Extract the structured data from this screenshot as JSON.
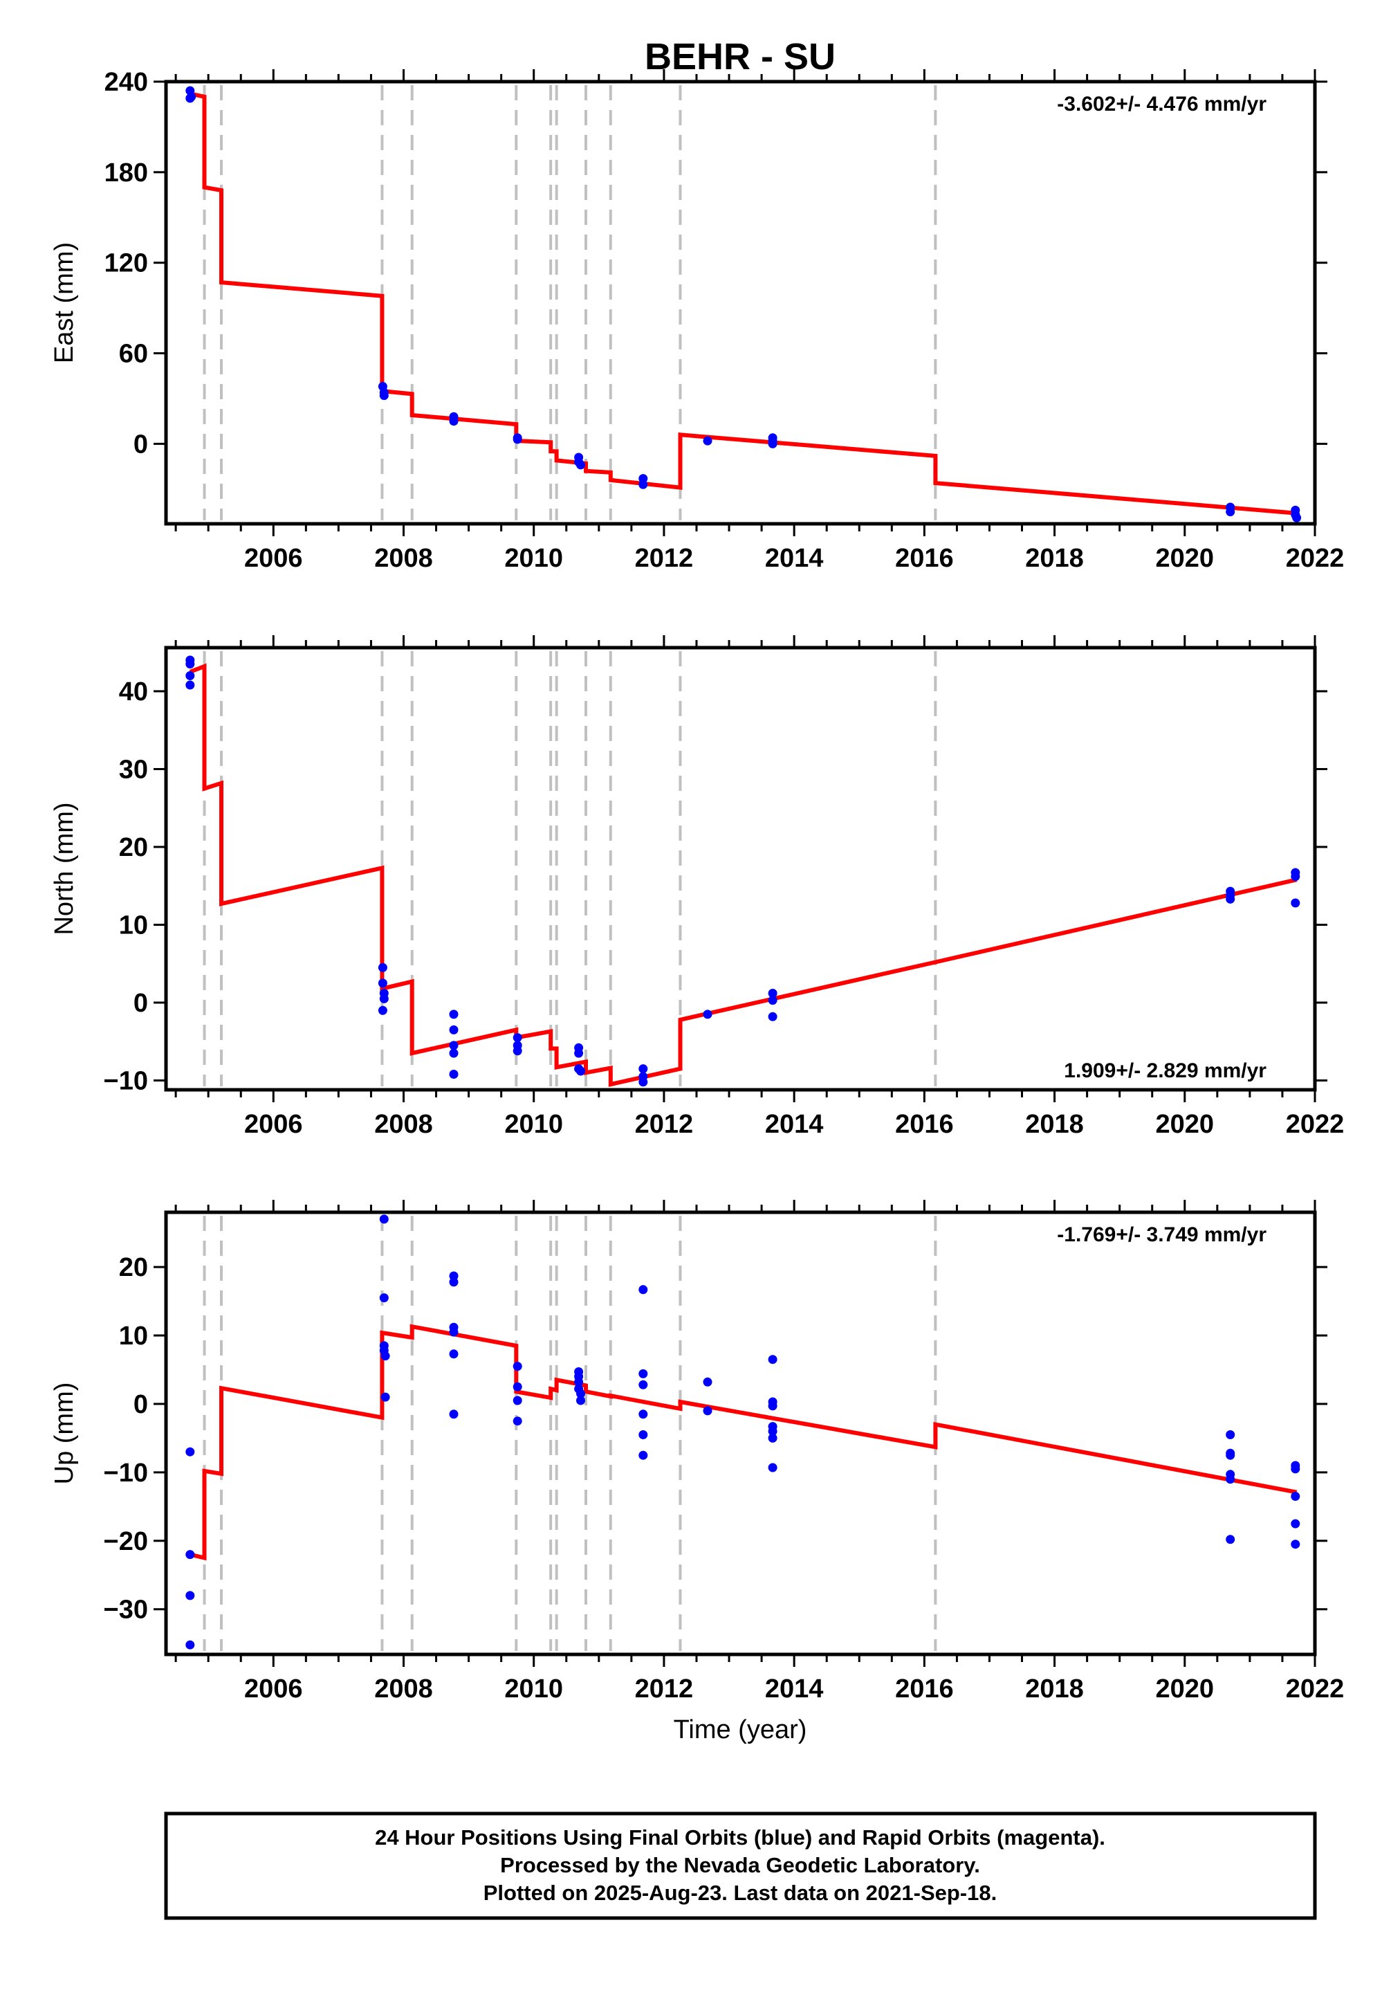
{
  "title": "BEHR - SU",
  "x_axis_label": "Time (year)",
  "footer": {
    "line1": "24 Hour Positions Using Final Orbits (blue) and Rapid Orbits (magenta).",
    "line2": "Processed by the Nevada Geodetic Laboratory.",
    "line3": "Plotted on 2025-Aug-23. Last data on 2021-Sep-18."
  },
  "colors": {
    "data": "#0000ff",
    "model": "#ff0000",
    "steps": "#c0c0c0",
    "frame": "#000000"
  },
  "chart_data": [
    {
      "type": "scatter",
      "ylabel": "East (mm)",
      "rate_text": "-3.602+/- 4.476 mm/yr",
      "rate_position": "top-right",
      "xlim": [
        2004.35,
        2022.0
      ],
      "ylim": [
        -53,
        240
      ],
      "xticks": [
        2006,
        2008,
        2010,
        2012,
        2014,
        2016,
        2018,
        2020,
        2022
      ],
      "yticks": [
        0,
        60,
        120,
        180,
        240
      ],
      "step_epochs": [
        2004.94,
        2005.2,
        2007.67,
        2008.13,
        2009.73,
        2010.26,
        2010.35,
        2010.8,
        2011.18,
        2012.25,
        2016.17
      ],
      "points": [
        [
          2004.72,
          234
        ],
        [
          2004.72,
          229
        ],
        [
          2004.74,
          230
        ],
        [
          2007.68,
          38
        ],
        [
          2007.7,
          34
        ],
        [
          2007.7,
          32
        ],
        [
          2008.77,
          18
        ],
        [
          2008.77,
          15
        ],
        [
          2009.75,
          4
        ],
        [
          2009.75,
          3
        ],
        [
          2010.69,
          -9
        ],
        [
          2010.69,
          -12
        ],
        [
          2010.72,
          -14
        ],
        [
          2011.68,
          -23
        ],
        [
          2011.68,
          -27
        ],
        [
          2012.67,
          2
        ],
        [
          2013.67,
          4
        ],
        [
          2013.67,
          2
        ],
        [
          2013.67,
          0
        ],
        [
          2020.7,
          -42
        ],
        [
          2020.7,
          -45
        ],
        [
          2021.7,
          -44
        ],
        [
          2021.7,
          -47
        ],
        [
          2021.72,
          -49
        ]
      ],
      "model": [
        [
          2004.72,
          232
        ],
        [
          2004.94,
          230
        ],
        [
          2004.94,
          170
        ],
        [
          2005.2,
          168
        ],
        [
          2005.2,
          107
        ],
        [
          2007.67,
          98
        ],
        [
          2007.67,
          35
        ],
        [
          2008.13,
          33
        ],
        [
          2008.13,
          19
        ],
        [
          2009.73,
          13
        ],
        [
          2009.73,
          2
        ],
        [
          2010.26,
          1
        ],
        [
          2010.26,
          -5
        ],
        [
          2010.35,
          -5
        ],
        [
          2010.35,
          -11
        ],
        [
          2010.8,
          -13
        ],
        [
          2010.8,
          -18
        ],
        [
          2011.18,
          -19
        ],
        [
          2011.18,
          -24
        ],
        [
          2012.25,
          -29
        ],
        [
          2012.25,
          6
        ],
        [
          2016.17,
          -8
        ],
        [
          2016.17,
          -26
        ],
        [
          2021.72,
          -46
        ]
      ]
    },
    {
      "type": "scatter",
      "ylabel": "North (mm)",
      "rate_text": "1.909+/- 2.829 mm/yr",
      "rate_position": "bottom-right",
      "xlim": [
        2004.35,
        2022.0
      ],
      "ylim": [
        -11.2,
        45.6
      ],
      "xticks": [
        2006,
        2008,
        2010,
        2012,
        2014,
        2016,
        2018,
        2020,
        2022
      ],
      "yticks": [
        -10,
        0,
        10,
        20,
        30,
        40
      ],
      "step_epochs": [
        2004.94,
        2005.2,
        2007.67,
        2008.13,
        2009.73,
        2010.26,
        2010.35,
        2010.8,
        2011.18,
        2012.25,
        2016.17
      ],
      "points": [
        [
          2004.72,
          44
        ],
        [
          2004.72,
          43.5
        ],
        [
          2004.72,
          42
        ],
        [
          2004.72,
          40.8
        ],
        [
          2007.68,
          4.5
        ],
        [
          2007.68,
          2.5
        ],
        [
          2007.7,
          1.2
        ],
        [
          2007.7,
          0.5
        ],
        [
          2007.68,
          -1
        ],
        [
          2008.77,
          -1.5
        ],
        [
          2008.77,
          -3.5
        ],
        [
          2008.77,
          -5.5
        ],
        [
          2008.77,
          -6.5
        ],
        [
          2008.77,
          -9.2
        ],
        [
          2009.75,
          -4.5
        ],
        [
          2009.75,
          -5.5
        ],
        [
          2009.75,
          -6.2
        ],
        [
          2010.69,
          -5.8
        ],
        [
          2010.69,
          -6.5
        ],
        [
          2010.69,
          -8.5
        ],
        [
          2010.72,
          -8.8
        ],
        [
          2011.68,
          -8.5
        ],
        [
          2011.68,
          -9.5
        ],
        [
          2011.68,
          -10.2
        ],
        [
          2012.67,
          -1.5
        ],
        [
          2013.67,
          1.2
        ],
        [
          2013.67,
          0.3
        ],
        [
          2013.67,
          -1.8
        ],
        [
          2020.7,
          14.3
        ],
        [
          2020.7,
          13.8
        ],
        [
          2020.7,
          13.3
        ],
        [
          2021.7,
          16.7
        ],
        [
          2021.7,
          16.2
        ],
        [
          2021.7,
          12.8
        ]
      ],
      "model": [
        [
          2004.72,
          42.5
        ],
        [
          2004.94,
          43.2
        ],
        [
          2004.94,
          27.5
        ],
        [
          2005.2,
          28.2
        ],
        [
          2005.2,
          12.7
        ],
        [
          2007.67,
          17.3
        ],
        [
          2007.67,
          1.8
        ],
        [
          2008.13,
          2.7
        ],
        [
          2008.13,
          -6.5
        ],
        [
          2009.73,
          -3.5
        ],
        [
          2009.73,
          -4.5
        ],
        [
          2010.26,
          -3.7
        ],
        [
          2010.26,
          -5.9
        ],
        [
          2010.35,
          -5.9
        ],
        [
          2010.35,
          -8.3
        ],
        [
          2010.8,
          -7.6
        ],
        [
          2010.8,
          -9.0
        ],
        [
          2011.18,
          -8.4
        ],
        [
          2011.18,
          -10.5
        ],
        [
          2012.25,
          -8.5
        ],
        [
          2012.25,
          -2.2
        ],
        [
          2016.17,
          5.2
        ],
        [
          2021.72,
          15.8
        ]
      ]
    },
    {
      "type": "scatter",
      "ylabel": "Up (mm)",
      "rate_text": "-1.769+/- 3.749 mm/yr",
      "rate_position": "top-right",
      "xlabel": "Time (year)",
      "xlim": [
        2004.35,
        2022.0
      ],
      "ylim": [
        -36.6,
        28.0
      ],
      "xticks": [
        2006,
        2008,
        2010,
        2012,
        2014,
        2016,
        2018,
        2020,
        2022
      ],
      "yticks": [
        -30,
        -20,
        -10,
        0,
        10,
        20
      ],
      "step_epochs": [
        2004.94,
        2005.2,
        2007.67,
        2008.13,
        2009.73,
        2010.26,
        2010.35,
        2010.8,
        2011.18,
        2012.25,
        2016.17
      ],
      "points": [
        [
          2004.72,
          -7
        ],
        [
          2004.72,
          -22
        ],
        [
          2004.72,
          -28
        ],
        [
          2004.72,
          -35.2
        ],
        [
          2007.7,
          27
        ],
        [
          2007.7,
          15.5
        ],
        [
          2007.7,
          8.5
        ],
        [
          2007.7,
          7.8
        ],
        [
          2007.72,
          7
        ],
        [
          2007.72,
          1
        ],
        [
          2008.77,
          18.7
        ],
        [
          2008.77,
          17.8
        ],
        [
          2008.77,
          11.2
        ],
        [
          2008.77,
          10.5
        ],
        [
          2008.77,
          7.3
        ],
        [
          2008.77,
          -1.5
        ],
        [
          2009.75,
          5.5
        ],
        [
          2009.75,
          2.5
        ],
        [
          2009.75,
          0.5
        ],
        [
          2009.75,
          -2.5
        ],
        [
          2010.69,
          4.7
        ],
        [
          2010.69,
          4.0
        ],
        [
          2010.69,
          3.2
        ],
        [
          2010.69,
          2.2
        ],
        [
          2010.72,
          1.5
        ],
        [
          2010.72,
          0.5
        ],
        [
          2011.68,
          16.7
        ],
        [
          2011.68,
          4.4
        ],
        [
          2011.68,
          2.8
        ],
        [
          2011.68,
          -1.5
        ],
        [
          2011.68,
          -4.5
        ],
        [
          2011.68,
          -7.5
        ],
        [
          2012.67,
          3.2
        ],
        [
          2012.67,
          -1
        ],
        [
          2013.67,
          6.5
        ],
        [
          2013.67,
          0.3
        ],
        [
          2013.67,
          -0.3
        ],
        [
          2013.67,
          -3.3
        ],
        [
          2013.67,
          -4
        ],
        [
          2013.67,
          -5
        ],
        [
          2013.67,
          -9.3
        ],
        [
          2020.7,
          -4.5
        ],
        [
          2020.7,
          -7.2
        ],
        [
          2020.7,
          -7.5
        ],
        [
          2020.7,
          -10.3
        ],
        [
          2020.7,
          -11
        ],
        [
          2020.7,
          -19.8
        ],
        [
          2021.7,
          -9
        ],
        [
          2021.7,
          -9.5
        ],
        [
          2021.7,
          -13.5
        ],
        [
          2021.7,
          -17.5
        ],
        [
          2021.7,
          -20.5
        ]
      ],
      "model": [
        [
          2004.72,
          -22
        ],
        [
          2004.94,
          -22.5
        ],
        [
          2004.94,
          -9.8
        ],
        [
          2005.2,
          -10.2
        ],
        [
          2005.2,
          2.3
        ],
        [
          2007.67,
          -2.0
        ],
        [
          2007.67,
          10.4
        ],
        [
          2008.13,
          9.7
        ],
        [
          2008.13,
          11.3
        ],
        [
          2009.73,
          8.5
        ],
        [
          2009.73,
          1.8
        ],
        [
          2010.26,
          0.9
        ],
        [
          2010.26,
          2.2
        ],
        [
          2010.35,
          2.0
        ],
        [
          2010.35,
          3.5
        ],
        [
          2010.8,
          2.7
        ],
        [
          2010.8,
          1.8
        ],
        [
          2011.18,
          1.1
        ],
        [
          2011.18,
          1.2
        ],
        [
          2012.25,
          -0.7
        ],
        [
          2012.25,
          0.3
        ],
        [
          2016.17,
          -6.3
        ],
        [
          2016.17,
          -3.0
        ],
        [
          2021.72,
          -12.9
        ]
      ]
    }
  ]
}
